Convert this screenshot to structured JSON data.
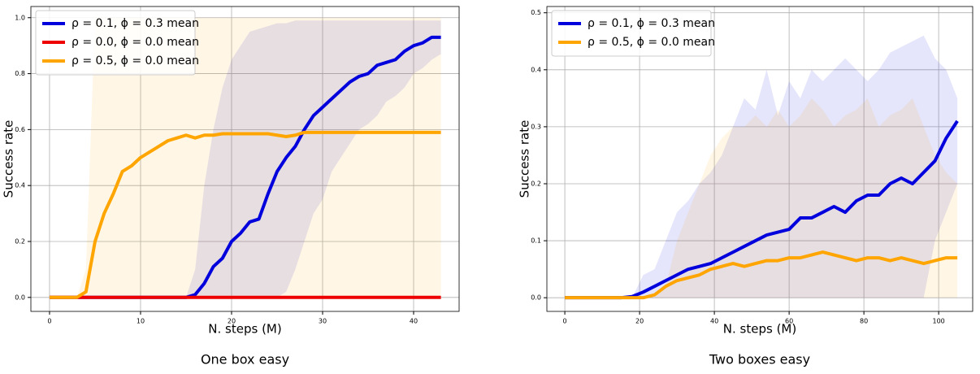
{
  "chart_data": [
    {
      "type": "line",
      "title": "One box easy",
      "xlabel": "N. steps (M)",
      "ylabel": "Success rate",
      "x": [
        0,
        1,
        2,
        3,
        4,
        5,
        6,
        7,
        8,
        9,
        10,
        11,
        12,
        13,
        14,
        15,
        16,
        17,
        18,
        19,
        20,
        21,
        22,
        23,
        24,
        25,
        26,
        27,
        28,
        29,
        30,
        31,
        32,
        33,
        34,
        35,
        36,
        37,
        38,
        39,
        40,
        41,
        42,
        43
      ],
      "series": [
        {
          "name": "ρ = 0.1, ϕ = 0.3 mean",
          "color": "#0000dd",
          "values": [
            0,
            0,
            0,
            0,
            0,
            0,
            0,
            0,
            0,
            0,
            0,
            0,
            0,
            0,
            0,
            0,
            0.01,
            0.05,
            0.11,
            0.14,
            0.2,
            0.23,
            0.27,
            0.28,
            0.37,
            0.45,
            0.5,
            0.54,
            0.6,
            0.65,
            0.68,
            0.71,
            0.74,
            0.77,
            0.79,
            0.8,
            0.83,
            0.84,
            0.85,
            0.88,
            0.9,
            0.91,
            0.93,
            0.93
          ],
          "lower": [
            0,
            0,
            0,
            0,
            0,
            0,
            0,
            0,
            0,
            0,
            0,
            0,
            0,
            0,
            0,
            0,
            0,
            0,
            0,
            0,
            0,
            0,
            0,
            0,
            0,
            0,
            0.02,
            0.1,
            0.2,
            0.3,
            0.35,
            0.45,
            0.5,
            0.55,
            0.6,
            0.62,
            0.65,
            0.7,
            0.72,
            0.75,
            0.8,
            0.82,
            0.85,
            0.87
          ],
          "upper": [
            0,
            0,
            0,
            0,
            0,
            0,
            0,
            0,
            0,
            0,
            0,
            0,
            0,
            0,
            0,
            0,
            0.1,
            0.4,
            0.6,
            0.75,
            0.85,
            0.9,
            0.95,
            0.96,
            0.97,
            0.98,
            0.98,
            0.99,
            0.99,
            0.99,
            0.99,
            0.99,
            0.99,
            0.99,
            0.99,
            0.99,
            0.99,
            0.99,
            0.99,
            0.99,
            0.99,
            0.99,
            0.99,
            0.99
          ]
        },
        {
          "name": "ρ = 0.0, ϕ = 0.0 mean",
          "color": "#ee0000",
          "values": [
            0,
            0,
            0,
            0,
            0,
            0,
            0,
            0,
            0,
            0,
            0,
            0,
            0,
            0,
            0,
            0,
            0,
            0,
            0,
            0,
            0,
            0,
            0,
            0,
            0,
            0,
            0,
            0,
            0,
            0,
            0,
            0,
            0,
            0,
            0,
            0,
            0,
            0,
            0,
            0,
            0,
            0,
            0,
            0
          ]
        },
        {
          "name": "ρ = 0.5, ϕ = 0.0 mean",
          "color": "#ffa500",
          "values": [
            0,
            0,
            0,
            0,
            0.02,
            0.2,
            0.3,
            0.37,
            0.45,
            0.47,
            0.5,
            0.52,
            0.54,
            0.56,
            0.57,
            0.58,
            0.57,
            0.58,
            0.58,
            0.585,
            0.585,
            0.585,
            0.585,
            0.585,
            0.585,
            0.58,
            0.575,
            0.58,
            0.59,
            0.59,
            0.59,
            0.59,
            0.59,
            0.59,
            0.59,
            0.59,
            0.59,
            0.59,
            0.59,
            0.59,
            0.59,
            0.59,
            0.59,
            0.59
          ],
          "lower": [
            0,
            0,
            0,
            0,
            0,
            0,
            0,
            0,
            0,
            0,
            0,
            0,
            0,
            0,
            0,
            0,
            0,
            0,
            0,
            0,
            0,
            0,
            0,
            0,
            0,
            0,
            0,
            0,
            0,
            0,
            0,
            0,
            0,
            0,
            0,
            0,
            0,
            0,
            0,
            0,
            0,
            0,
            0,
            0
          ],
          "upper": [
            0,
            0,
            0,
            0,
            0.1,
            1,
            1,
            1,
            1,
            1,
            1,
            1,
            1,
            1,
            1,
            1,
            1,
            1,
            1,
            1,
            1,
            1,
            1,
            1,
            1,
            1,
            1,
            1,
            1,
            1,
            1,
            1,
            1,
            1,
            1,
            1,
            1,
            1,
            1,
            1,
            1,
            1,
            1,
            1
          ]
        }
      ],
      "xlim": [
        -2.05,
        45
      ],
      "xticks": [
        0,
        10,
        20,
        30,
        40
      ],
      "ylim": [
        -0.05,
        1.04
      ],
      "yticks": [
        {
          "value": 0,
          "label": "0.0"
        },
        0.2,
        0.4,
        0.6,
        0.8,
        {
          "value": 1,
          "label": "1.0"
        }
      ],
      "grid": true,
      "legend": "upper left"
    },
    {
      "type": "line",
      "title": "Two boxes easy",
      "xlabel": "N. steps (M)",
      "ylabel": "Success rate",
      "x": [
        0,
        3,
        6,
        9,
        12,
        15,
        18,
        21,
        24,
        27,
        30,
        33,
        36,
        39,
        42,
        45,
        48,
        51,
        54,
        57,
        60,
        63,
        66,
        69,
        72,
        75,
        78,
        81,
        84,
        87,
        90,
        93,
        96,
        99,
        102,
        105
      ],
      "series": [
        {
          "name": "ρ = 0.1, ϕ = 0.3 mean",
          "color": "#0000dd",
          "values": [
            0,
            0,
            0,
            0,
            0,
            0,
            0.002,
            0.01,
            0.02,
            0.03,
            0.04,
            0.05,
            0.055,
            0.06,
            0.07,
            0.08,
            0.09,
            0.1,
            0.11,
            0.115,
            0.12,
            0.14,
            0.14,
            0.15,
            0.16,
            0.15,
            0.17,
            0.18,
            0.18,
            0.2,
            0.21,
            0.2,
            0.22,
            0.24,
            0.28,
            0.31
          ],
          "lower": [
            0,
            0,
            0,
            0,
            0,
            0,
            0,
            0,
            0,
            0,
            0,
            0,
            0,
            0,
            0,
            0,
            0,
            0,
            0,
            0,
            0,
            0,
            0,
            0,
            0,
            0,
            0,
            0,
            0,
            0,
            0,
            0,
            0,
            0.1,
            0.15,
            0.2
          ],
          "upper": [
            0,
            0,
            0,
            0,
            0,
            0,
            0,
            0.04,
            0.05,
            0.1,
            0.15,
            0.17,
            0.2,
            0.22,
            0.25,
            0.3,
            0.35,
            0.33,
            0.4,
            0.32,
            0.38,
            0.35,
            0.4,
            0.38,
            0.4,
            0.42,
            0.4,
            0.38,
            0.4,
            0.43,
            0.44,
            0.45,
            0.46,
            0.42,
            0.4,
            0.35
          ]
        },
        {
          "name": "ρ = 0.5, ϕ = 0.0 mean",
          "color": "#ffa500",
          "values": [
            0,
            0,
            0,
            0,
            0,
            0,
            0,
            0,
            0.005,
            0.02,
            0.03,
            0.035,
            0.04,
            0.05,
            0.055,
            0.06,
            0.055,
            0.06,
            0.065,
            0.065,
            0.07,
            0.07,
            0.075,
            0.08,
            0.075,
            0.07,
            0.065,
            0.07,
            0.07,
            0.065,
            0.07,
            0.065,
            0.06,
            0.065,
            0.07,
            0.07
          ],
          "lower": [
            0,
            0,
            0,
            0,
            0,
            0,
            0,
            0,
            0,
            0,
            0,
            0,
            0,
            0,
            0,
            0,
            0,
            0,
            0,
            0,
            0,
            0,
            0,
            0,
            0,
            0,
            0,
            0,
            0,
            0,
            0,
            0,
            0,
            0,
            0,
            0
          ],
          "upper": [
            0,
            0,
            0,
            0,
            0,
            0,
            0,
            0,
            0,
            0.02,
            0.1,
            0.15,
            0.2,
            0.25,
            0.28,
            0.3,
            0.3,
            0.32,
            0.3,
            0.33,
            0.3,
            0.32,
            0.35,
            0.33,
            0.3,
            0.32,
            0.33,
            0.35,
            0.3,
            0.32,
            0.33,
            0.35,
            0.3,
            0.25,
            0.22,
            0.2
          ]
        }
      ],
      "xlim": [
        -4.8,
        109.1
      ],
      "xticks": [
        0,
        20,
        40,
        60,
        80,
        100
      ],
      "ylim": [
        -0.024,
        0.511
      ],
      "yticks": [
        {
          "value": 0,
          "label": "0.0"
        },
        0.1,
        0.2,
        0.3,
        0.4,
        0.5
      ],
      "grid": true,
      "legend": "upper left"
    }
  ]
}
